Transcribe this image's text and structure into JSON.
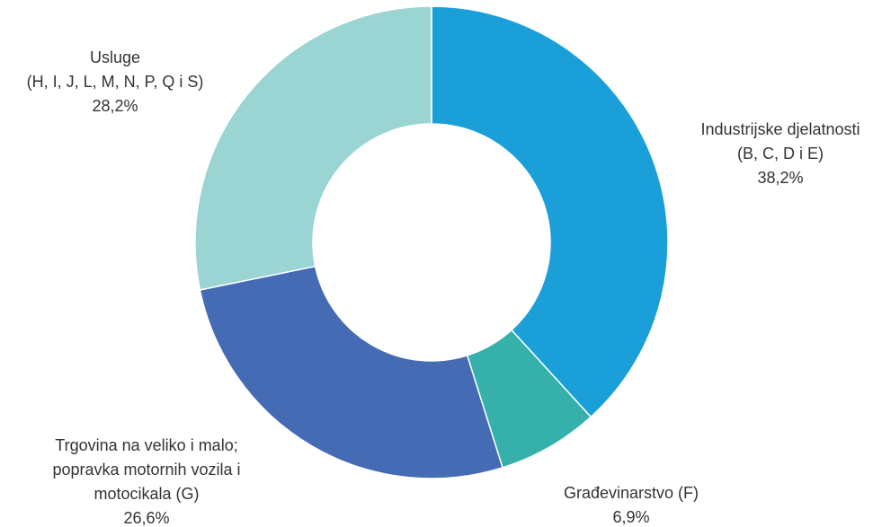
{
  "chart_data": {
    "type": "donut",
    "categories": [
      [
        "Industrijske djelatnosti",
        "(B, C, D i E)"
      ],
      [
        "Građevinarstvo (F)"
      ],
      [
        "Trgovina na veliko i malo;",
        "popravka motornih vozila i",
        "motocikala (G)"
      ],
      [
        "Usluge",
        "(H, I, J, L, M, N, P, Q i S)"
      ]
    ],
    "values": [
      38.2,
      6.9,
      26.6,
      28.2
    ],
    "value_labels": [
      "38,2%",
      "6,9%",
      "26,6%",
      "28,2%"
    ],
    "colors": [
      "#1b9fd9",
      "#35b0ab",
      "#456bb5",
      "#9ad5d3"
    ]
  }
}
